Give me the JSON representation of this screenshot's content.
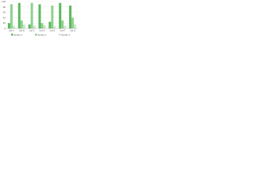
{
  "chart_data": {
    "type": "bar",
    "categories": [
      "Cat A",
      "Cat B",
      "Cat C",
      "Cat D",
      "Cat E",
      "Cat F",
      "Cat G"
    ],
    "series": [
      {
        "name": "Series 1",
        "color": "#5cb85c",
        "values": [
          20,
          95,
          15,
          90,
          25,
          95,
          85
        ]
      },
      {
        "name": "Series 2",
        "color": "#8fd18f",
        "values": [
          90,
          30,
          95,
          20,
          85,
          30,
          40
        ]
      },
      {
        "name": "Series 3",
        "color": "#c9e6c9",
        "values": [
          10,
          15,
          10,
          12,
          8,
          10,
          15
        ]
      }
    ],
    "ylim": [
      0,
      100
    ],
    "yticks": [
      0,
      20,
      40,
      60,
      80,
      100
    ],
    "grid": true
  }
}
